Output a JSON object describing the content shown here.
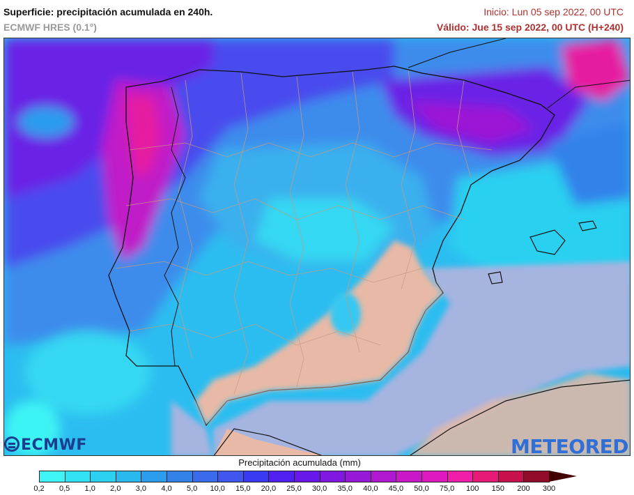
{
  "header": {
    "title": "Superficie: precipitación acumulada en 240h.",
    "model": "ECMWF HRES (0.1°)",
    "init": "Inicio: Lun 05 sep 2022, 00 UTC",
    "valid": "Válido: Jue 15 sep 2022, 00 UTC (H+240)"
  },
  "logos": {
    "left": "ECMWF",
    "right": "METEORED"
  },
  "legend": {
    "title": "Precipitación acumulada (mm)",
    "ticks": [
      "0,2",
      "0,5",
      "1,0",
      "2,0",
      "3,0",
      "4,0",
      "5,0",
      "10,0",
      "15,0",
      "20,0",
      "25,0",
      "30,0",
      "35,0",
      "40,0",
      "45,0",
      "50,0",
      "75,0",
      "100",
      "150",
      "200",
      "300"
    ],
    "colors": [
      "#3ef4f4",
      "#30e2f2",
      "#2cd0f0",
      "#2ab9ee",
      "#2c9cec",
      "#3282ea",
      "#3a6bec",
      "#4056ee",
      "#3a3af2",
      "#5020f0",
      "#6818e8",
      "#8018e0",
      "#9818d8",
      "#b018d0",
      "#c818c8",
      "#e018c0",
      "#f01ea8",
      "#e81a78",
      "#c8104c",
      "#900c28"
    ],
    "arrow_color": "#440000"
  },
  "map": {
    "colors": {
      "land_dry": "#e8b9a6",
      "sea_dry": "#a6b4e0",
      "borders": "#c89a80",
      "coast": "#111111"
    }
  }
}
